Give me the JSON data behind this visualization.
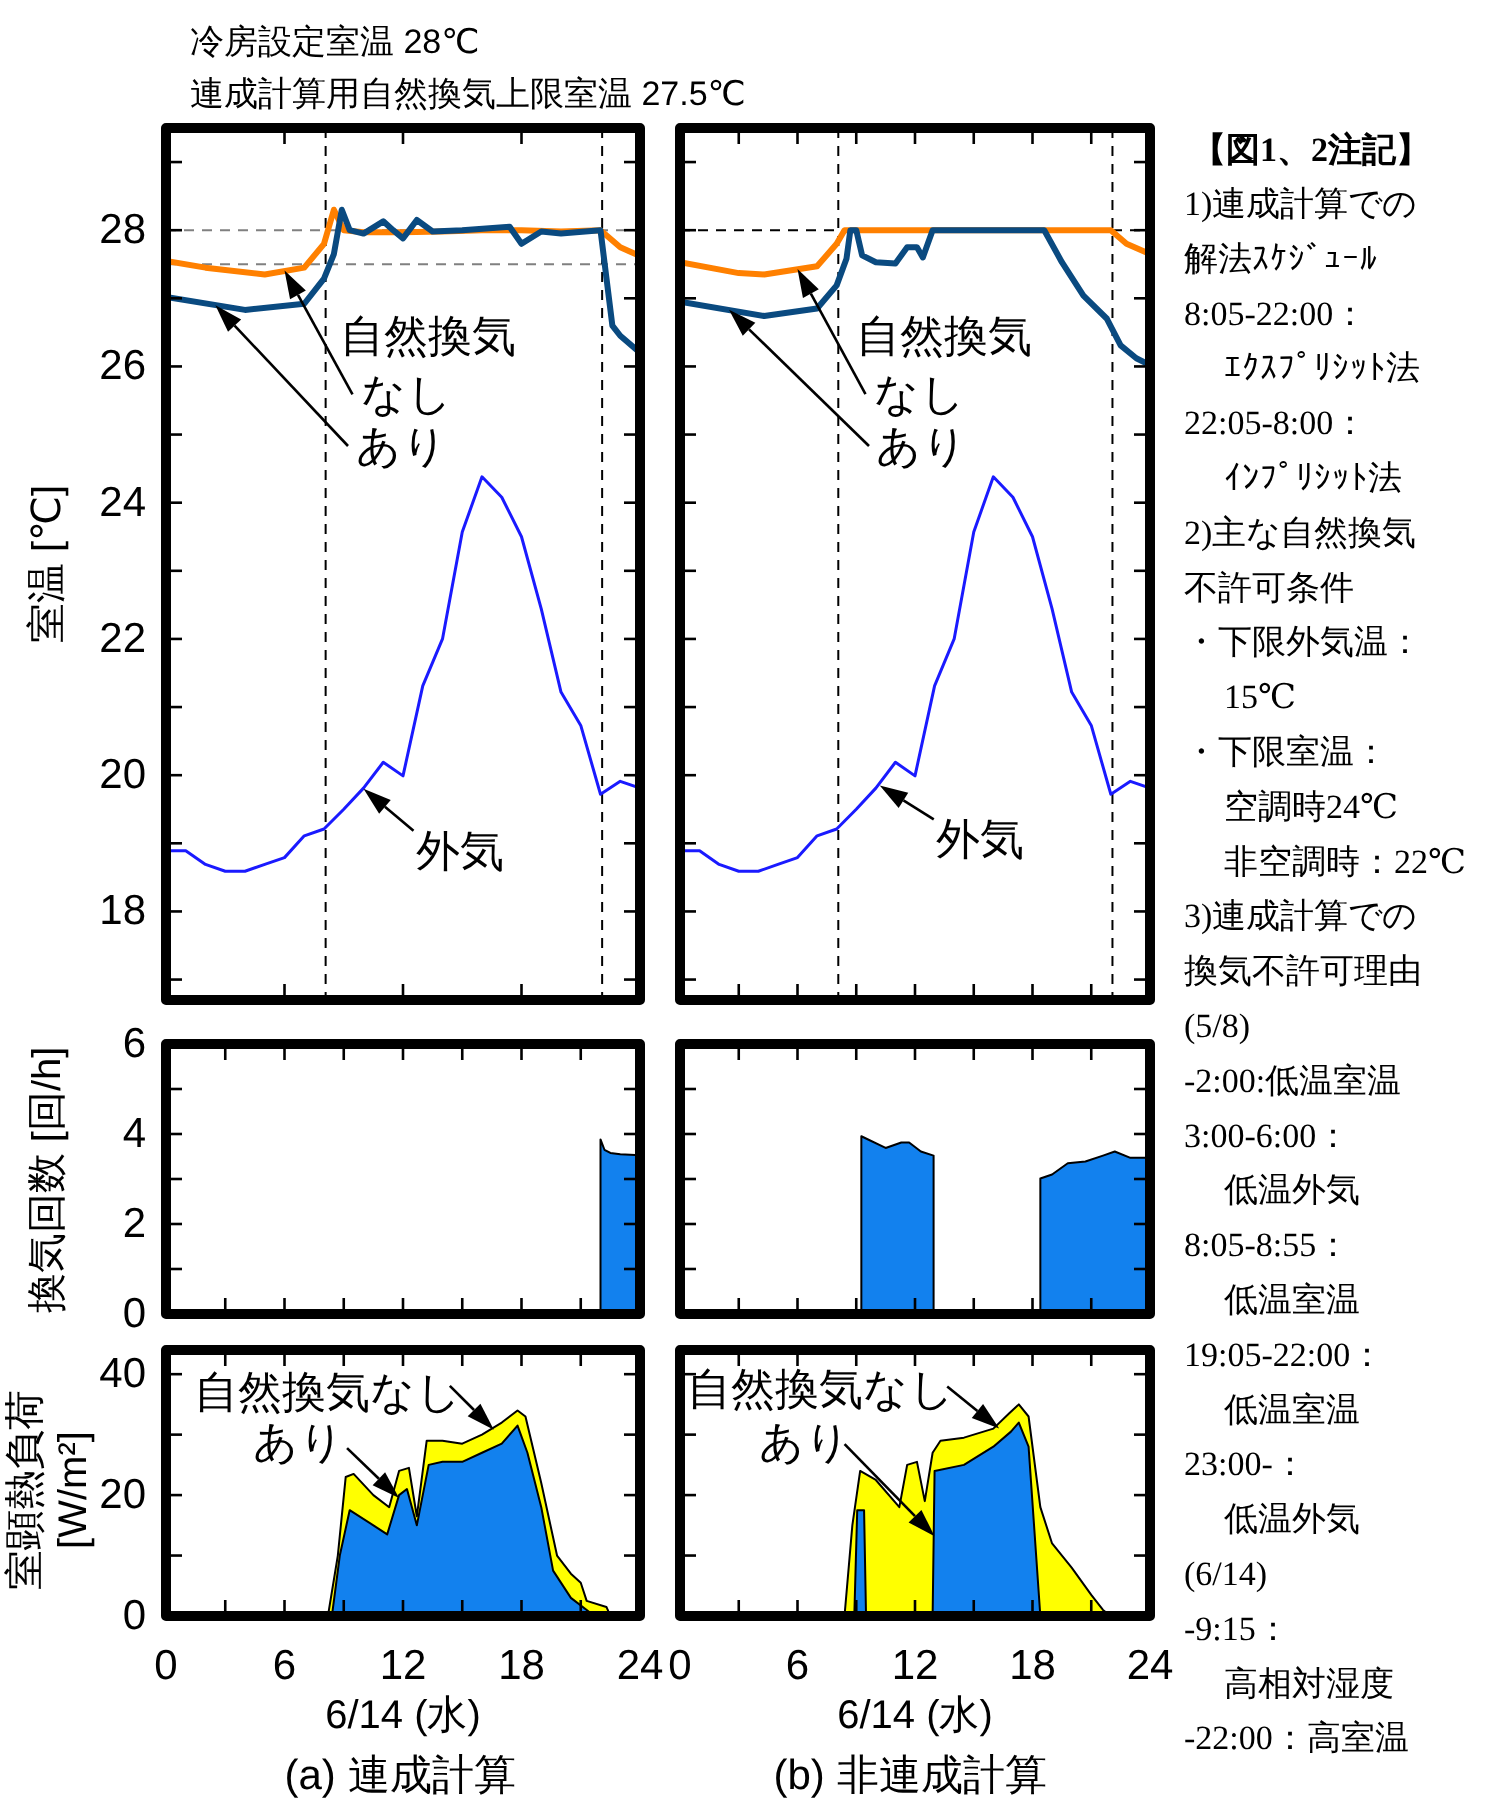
{
  "chart_data": [
    {
      "type": "line",
      "title": "冷房設定室温 28℃",
      "subtitle": "連成計算用自然換気上限室温 27.5℃",
      "ylabel": "室温 [℃]",
      "xlim": [
        0,
        24
      ],
      "ylim": [
        16.7,
        29.5
      ],
      "xticks": [
        0,
        6,
        12,
        18,
        24
      ],
      "yticks": [
        {
          "value": 17,
          "label": null
        },
        18,
        {
          "value": 19,
          "label": null
        },
        20,
        {
          "value": 21,
          "label": null
        },
        22,
        {
          "value": 23,
          "label": null
        },
        24,
        {
          "value": 25,
          "label": null
        },
        26,
        {
          "value": 27,
          "label": null
        },
        28,
        {
          "value": 29,
          "label": null
        }
      ],
      "tick_labels": "y",
      "series": [
        {
          "color": "#ff8000",
          "x": [
            0,
            2,
            5,
            7,
            8,
            8.5,
            9,
            10,
            12,
            14,
            16,
            18,
            20,
            22,
            23,
            24
          ],
          "values": [
            27.55,
            27.45,
            27.35,
            27.45,
            27.8,
            28.3,
            28.0,
            27.97,
            27.97,
            27.98,
            28.0,
            28.0,
            27.98,
            28.0,
            27.75,
            27.62
          ]
        },
        {
          "color": "#0a4a80",
          "x": [
            0,
            4,
            7,
            8,
            8.5,
            8.9,
            9.3,
            10,
            11,
            11.5,
            12,
            12.7,
            13.5,
            15,
            17.4,
            18,
            19,
            20,
            22,
            22.3,
            22.6,
            23,
            24
          ],
          "values": [
            27.02,
            26.83,
            26.92,
            27.29,
            27.65,
            28.3,
            28.0,
            27.95,
            28.13,
            28.0,
            27.88,
            28.15,
            27.98,
            28.0,
            28.05,
            27.8,
            27.98,
            27.95,
            28.0,
            27.3,
            26.6,
            26.45,
            26.2
          ]
        },
        {
          "color": "#1a1aff",
          "x": [
            0,
            1,
            2,
            3,
            4,
            5,
            6,
            7,
            8,
            9,
            10,
            11,
            12,
            13,
            14,
            15,
            16,
            17,
            18,
            19,
            20,
            21,
            22,
            23,
            24
          ],
          "values": [
            18.89,
            18.89,
            18.69,
            18.59,
            18.59,
            18.69,
            18.79,
            19.11,
            19.21,
            19.5,
            19.81,
            20.19,
            19.99,
            21.31,
            22.0,
            23.57,
            24.38,
            24.08,
            23.5,
            22.44,
            21.22,
            20.73,
            19.72,
            19.91,
            19.81
          ]
        }
      ],
      "ref_lines": [
        {
          "axis": "y",
          "value": 28,
          "color": "#808080",
          "line_style": "dashed"
        },
        {
          "axis": "y",
          "value": 27.5,
          "color": "#808080",
          "line_style": "dashed"
        },
        {
          "axis": "x",
          "value": 8.083,
          "color": "#000000",
          "line_style": "dashed"
        },
        {
          "axis": "x",
          "value": 22.083,
          "color": "#000000",
          "line_style": "dashed"
        }
      ],
      "annotations": [
        {
          "text": "なし",
          "x": 6,
          "y": 27.41
        },
        "あり",
        {
          "text": "外気",
          "x": 10,
          "y": 19.8
        },
        "自然換気"
      ]
    },
    {
      "type": "line",
      "xlim": [
        0,
        24
      ],
      "ylim": [
        16.7,
        29.5
      ],
      "xticks": [
        0,
        3,
        6,
        9,
        12,
        15,
        18,
        21,
        24
      ],
      "yticks": [
        17,
        18,
        19,
        20,
        21,
        22,
        23,
        24,
        25,
        26,
        27,
        28,
        29
      ],
      "tick_labels": false,
      "series": [
        {
          "color": "#ff8000",
          "x": [
            0,
            3,
            4.3,
            7,
            8,
            8.4,
            22,
            22.8,
            24
          ],
          "values": [
            27.53,
            27.37,
            27.35,
            27.47,
            27.8,
            28.0,
            28.0,
            27.8,
            27.65
          ]
        },
        {
          "color": "#0a4a80",
          "x": [
            0,
            4.3,
            7,
            8,
            8.5,
            8.7,
            9.0,
            9.3,
            10,
            11,
            11.6,
            12.1,
            12.4,
            12.9,
            18.6,
            19.5,
            20.6,
            21.8,
            22.5,
            23.3,
            24
          ],
          "values": [
            26.95,
            26.74,
            26.85,
            27.19,
            27.58,
            28.0,
            28.0,
            27.63,
            27.53,
            27.51,
            27.75,
            27.75,
            27.6,
            28.0,
            28.0,
            27.53,
            27.04,
            26.7,
            26.31,
            26.12,
            26.02
          ]
        },
        {
          "color": "#1a1aff",
          "x": [
            0,
            1,
            2,
            3,
            4,
            5,
            6,
            7,
            8,
            9,
            10,
            11,
            12,
            13,
            14,
            15,
            16,
            17,
            18,
            19,
            20,
            21,
            22,
            23,
            24
          ],
          "values": [
            18.89,
            18.89,
            18.69,
            18.59,
            18.59,
            18.69,
            18.79,
            19.11,
            19.21,
            19.5,
            19.81,
            20.19,
            19.99,
            21.31,
            22.0,
            23.57,
            24.38,
            24.08,
            23.5,
            22.44,
            21.22,
            20.73,
            19.72,
            19.91,
            19.81
          ]
        }
      ],
      "ref_lines": [
        {
          "axis": "y",
          "value": 28,
          "color": "#000000",
          "line_style": "dashed"
        },
        {
          "axis": "x",
          "value": 8.083,
          "color": "#000000",
          "line_style": "dashed"
        },
        {
          "axis": "x",
          "value": 22.083,
          "color": "#000000",
          "line_style": "dashed"
        }
      ],
      "annotations": [
        {
          "text": "なし",
          "x": 6,
          "y": 27.43
        },
        "あり",
        {
          "text": "外気",
          "x": 10.2,
          "y": 19.85
        },
        "自然換気"
      ]
    },
    {
      "type": "area",
      "ylabel": "換気回数 [回/h]",
      "xlim": [
        0,
        24
      ],
      "ylim": [
        0,
        6
      ],
      "xticks": [
        0,
        3,
        6,
        9,
        12,
        15,
        18,
        21,
        24
      ],
      "yticks": [
        0,
        {
          "value": 1,
          "label": null
        },
        2,
        {
          "value": 3,
          "label": null
        },
        4,
        {
          "value": 5,
          "label": null
        },
        6
      ],
      "tick_labels": "y",
      "series": [
        {
          "color": "#1281ee",
          "x": [
            22.0,
            22.2,
            22.5,
            23,
            24
          ],
          "values": [
            3.88,
            3.65,
            3.58,
            3.55,
            3.53
          ]
        }
      ]
    },
    {
      "type": "area",
      "xlim": [
        0,
        24
      ],
      "ylim": [
        0,
        6
      ],
      "xticks": [
        0,
        3,
        6,
        9,
        12,
        15,
        18,
        21,
        24
      ],
      "yticks": [
        0,
        1,
        2,
        3,
        4,
        5,
        6
      ],
      "tick_labels": false,
      "series": [
        {
          "color": "#1281ee",
          "x": [
            9.26,
            9.26,
            10.5,
            11.3,
            11.7,
            12.3,
            12.95,
            12.95,
            18.4,
            18.4,
            19.0,
            19.8,
            20.7,
            21.6,
            22.2,
            23,
            24
          ],
          "values": [
            0,
            3.95,
            3.69,
            3.81,
            3.81,
            3.61,
            3.52,
            0,
            0,
            3.01,
            3.1,
            3.35,
            3.39,
            3.52,
            3.61,
            3.47,
            3.47
          ]
        }
      ]
    },
    {
      "type": "area",
      "ylabel": "室顕熱負荷 [W/m²]",
      "xlabel": "6/14 (水)",
      "xlim": [
        0,
        24
      ],
      "ylim": [
        0,
        44
      ],
      "xticks": [
        0,
        {
          "value": 3,
          "label": null
        },
        6,
        {
          "value": 9,
          "label": null
        },
        12,
        {
          "value": 15,
          "label": null
        },
        18,
        {
          "value": 21,
          "label": null
        },
        24
      ],
      "yticks": [
        0,
        {
          "value": 10,
          "label": null
        },
        20,
        {
          "value": 30,
          "label": null
        },
        40
      ],
      "series": [
        {
          "color": "#ffff00",
          "x": [
            8.2,
            8.7,
            9.1,
            9.5,
            10.5,
            11.3,
            11.8,
            12.3,
            12.7,
            13.2,
            14,
            15,
            16,
            17,
            17.8,
            18.2,
            19,
            19.8,
            20.5,
            21,
            21.3,
            22.3,
            22.5
          ],
          "values": [
            0,
            10,
            23,
            23.5,
            20,
            18,
            24,
            24.5,
            16.5,
            29,
            29,
            28.5,
            30,
            32,
            34,
            33,
            22,
            10,
            7,
            5.5,
            2.5,
            1.5,
            0
          ]
        },
        {
          "color": "#1281ee",
          "x": [
            8.4,
            8.8,
            9.3,
            10.5,
            11.2,
            11.8,
            12.2,
            12.7,
            13.3,
            14,
            15,
            16,
            17,
            17.8,
            18.3,
            19,
            19.6,
            20.5,
            21.5,
            21.8
          ],
          "values": [
            0,
            10,
            17.5,
            15,
            13.5,
            20,
            21,
            15,
            25,
            25.5,
            25.5,
            27,
            28.5,
            31.5,
            27,
            18,
            7.5,
            3,
            0.5,
            0
          ]
        }
      ],
      "annotations": [
        {
          "text": "自然換気なし",
          "x": 16.6,
          "y": 30.8
        },
        {
          "text": "あり",
          "x": 11.8,
          "y": 19.5
        },
        "(a) 連成計算"
      ]
    },
    {
      "type": "area",
      "xlabel": "6/14 (水)",
      "xlim": [
        0,
        24
      ],
      "ylim": [
        0,
        44
      ],
      "xticks": [
        0,
        {
          "value": 3,
          "label": null
        },
        6,
        {
          "value": 9,
          "label": null
        },
        12,
        {
          "value": 15,
          "label": null
        },
        18,
        {
          "value": 21,
          "label": null
        },
        24
      ],
      "yticks": [
        0,
        10,
        20,
        30,
        40
      ],
      "tick_labels": "x",
      "series": [
        {
          "color": "#ffff00",
          "x": [
            8.4,
            8.8,
            9.2,
            10,
            11.2,
            11.6,
            12.1,
            12.5,
            12.9,
            13.3,
            14.5,
            16,
            16.8,
            17.3,
            17.8,
            18.4,
            19,
            20,
            21,
            21.6,
            22
          ],
          "values": [
            0,
            15,
            24,
            22.5,
            18,
            25,
            25.5,
            19,
            27,
            29,
            29.5,
            31,
            33.5,
            35,
            33,
            18,
            12,
            8,
            3.5,
            1,
            0
          ]
        },
        {
          "color": "#1281ee",
          "x": [
            8.9,
            9.05,
            9.4,
            9.5,
            12.9,
            13.0,
            14.5,
            16,
            16.9,
            17.3,
            17.8,
            18.4
          ],
          "values": [
            0,
            17.5,
            17.5,
            0,
            0,
            24,
            25,
            28,
            30.5,
            32,
            28,
            0
          ]
        }
      ],
      "annotations": [
        {
          "text": "自然換気なし",
          "x": 16.3,
          "y": 31
        },
        {
          "text": "あり",
          "x": 13.0,
          "y": 13.2
        },
        "(b) 非連成計算"
      ]
    },
    {
      "type": "other",
      "title": "【図1、2注記】",
      "annotations": [
        "1)連成計算での",
        "解法ｽｹｼﾞｭｰﾙ",
        "8:05-22:00：",
        "ｴｸｽﾌﾟﾘｼｯﾄ法",
        "22:05-8:00：",
        "ｲﾝﾌﾟﾘｼｯﾄ法",
        "2)主な自然換気",
        "不許可条件",
        "・下限外気温：",
        "15℃",
        "・下限室温：",
        "空調時24℃",
        "非空調時：22℃",
        "3)連成計算での",
        "換気不許可理由",
        "(5/8)",
        "-2:00:低温室温",
        "3:00-6:00：",
        "低温外気",
        "8:05-8:55：",
        "低温室温",
        "19:05-22:00：",
        "低温室温",
        "23:00-：",
        "低温外気",
        "(6/14)",
        "-9:15：",
        "高相対湿度",
        "-22:00：高室温"
      ]
    }
  ]
}
